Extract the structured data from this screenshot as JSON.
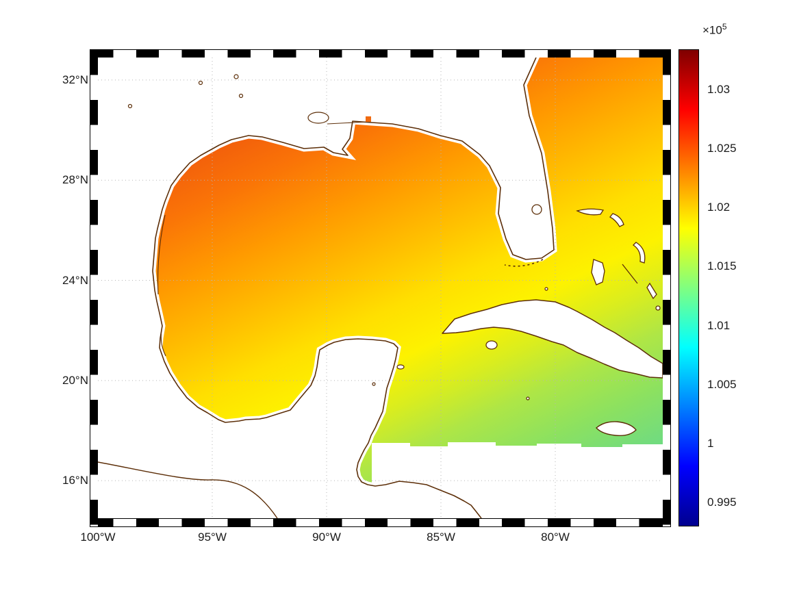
{
  "chart_data": {
    "type": "heatmap",
    "title": "",
    "description": "Gridded surface-pressure field (Pa, scale 1e5) over the Gulf of Mexico and northwest Caribbean, jet colormap, land masked white with brown coastlines, checkered map frame.",
    "x_axis": {
      "label": "",
      "tick_labels": [
        "100°W",
        "95°W",
        "90°W",
        "85°W",
        "80°W"
      ],
      "tick_lons": [
        -100,
        -95,
        -90,
        -85,
        -80
      ],
      "range_lon": [
        -100,
        -75.3
      ]
    },
    "y_axis": {
      "label": "",
      "tick_labels": [
        "32°N",
        "28°N",
        "24°N",
        "20°N",
        "16°N"
      ],
      "tick_lats": [
        32,
        28,
        24,
        20,
        16
      ],
      "range_lat": [
        14.5,
        32.9
      ]
    },
    "grid": {
      "visible": true,
      "style": "dotted",
      "color": "#b5b5b5"
    },
    "colorbar": {
      "exponent_prefix": "×10",
      "exponent_power": "5",
      "tick_labels": [
        "1.03",
        "1.025",
        "1.02",
        "1.015",
        "1.01",
        "1.005",
        "1",
        "0.995"
      ],
      "tick_values": [
        1.03,
        1.025,
        1.02,
        1.015,
        1.01,
        1.005,
        1.0,
        0.995
      ],
      "vmin": 0.993,
      "vmax": 1.0334,
      "colormap": "jet",
      "position": "right"
    },
    "field_samples_x1e5": [
      {
        "region": "NW Gulf near Texas-Louisiana coast",
        "lon": -94,
        "lat": 28.5,
        "value": 1.026
      },
      {
        "region": "North-central Gulf coast",
        "lon": -89,
        "lat": 29,
        "value": 1.025
      },
      {
        "region": "Central Gulf",
        "lon": -92,
        "lat": 25,
        "value": 1.021
      },
      {
        "region": "Bay of Campeche",
        "lon": -94,
        "lat": 20,
        "value": 1.019
      },
      {
        "region": "Florida Straits",
        "lon": -81,
        "lat": 24,
        "value": 1.018
      },
      {
        "region": "Atlantic NE corner",
        "lon": -76,
        "lat": 32,
        "value": 1.023
      },
      {
        "region": "Around Cuba / Bahamas",
        "lon": -79,
        "lat": 21.5,
        "value": 1.016
      },
      {
        "region": "SE Caribbean corner",
        "lon": -76,
        "lat": 17.5,
        "value": 1.013
      }
    ],
    "land_features": [
      "United States Gulf Coast",
      "Mississippi Delta",
      "Florida peninsula",
      "Florida Keys",
      "Lake Okeechobee",
      "Mexico east coast",
      "Yucatan Peninsula",
      "Belize / Honduras coast",
      "Cuba",
      "Isle of Youth",
      "Jamaica",
      "Bahamas (Grand Bahama, Abaco, Andros, Eleuthera, Long Island)"
    ],
    "colors": {
      "coastline": "#5c2e08",
      "land_fill": "#ffffff",
      "field_high": "#e84b0a",
      "field_low": "#67da8d",
      "frame": [
        "#000000",
        "#ffffff"
      ]
    }
  }
}
